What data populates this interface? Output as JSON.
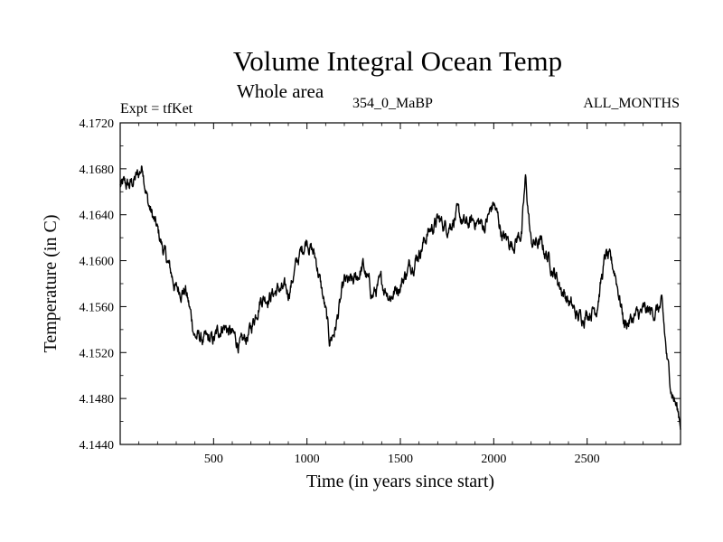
{
  "chart_data": {
    "type": "line",
    "title": "Volume Integral Ocean Temp",
    "subtitle": "Whole area",
    "annotations": {
      "left": "Expt = tfKet",
      "center": "354_0_MaBP",
      "right": "ALL_MONTHS"
    },
    "xlabel": "Time (in years since start)",
    "ylabel": "Temperature (in C)",
    "xlim": [
      0,
      3000
    ],
    "ylim": [
      4.144,
      4.172
    ],
    "xticks": [
      500,
      1000,
      1500,
      2000,
      2500
    ],
    "xtick_labels": [
      "500",
      "1000",
      "1500",
      "2000",
      "2500"
    ],
    "yticks": [
      4.144,
      4.148,
      4.152,
      4.156,
      4.16,
      4.164,
      4.168,
      4.172
    ],
    "ytick_labels": [
      "4.1440",
      "4.1480",
      "4.1520",
      "4.1560",
      "4.1600",
      "4.1640",
      "4.1680",
      "4.1720"
    ],
    "grid": false,
    "legend": "none",
    "line_color": "#000000",
    "series": [
      {
        "x": [
          0,
          50,
          100,
          120,
          150,
          200,
          250,
          300,
          350,
          400,
          450,
          500,
          550,
          600,
          650,
          700,
          750,
          800,
          850,
          900,
          950,
          1000,
          1050,
          1100,
          1120,
          1150,
          1200,
          1250,
          1300,
          1350,
          1400,
          1450,
          1500,
          1550,
          1600,
          1650,
          1700,
          1750,
          1800,
          1850,
          1900,
          1950,
          2000,
          2050,
          2100,
          2150,
          2170,
          2200,
          2250,
          2300,
          2350,
          2400,
          2450,
          2500,
          2550,
          2600,
          2650,
          2700,
          2750,
          2800,
          2850,
          2900,
          2930,
          2950,
          3000
        ],
        "y": [
          4.1665,
          4.1665,
          4.1675,
          4.1683,
          4.165,
          4.1625,
          4.16,
          4.1575,
          4.1575,
          4.1535,
          4.153,
          4.153,
          4.1545,
          4.1535,
          4.1525,
          4.154,
          4.1568,
          4.157,
          4.1575,
          4.1572,
          4.16,
          4.162,
          4.16,
          4.1555,
          4.153,
          4.154,
          4.158,
          4.158,
          4.1595,
          4.157,
          4.158,
          4.157,
          4.158,
          4.1595,
          4.1608,
          4.1625,
          4.1635,
          4.163,
          4.164,
          4.163,
          4.1635,
          4.163,
          4.165,
          4.162,
          4.1615,
          4.1625,
          4.167,
          4.1615,
          4.1615,
          4.16,
          4.158,
          4.1565,
          4.155,
          4.1555,
          4.156,
          4.1605,
          4.159,
          4.1545,
          4.155,
          4.1555,
          4.1555,
          4.156,
          4.151,
          4.149,
          4.146
        ]
      }
    ]
  }
}
